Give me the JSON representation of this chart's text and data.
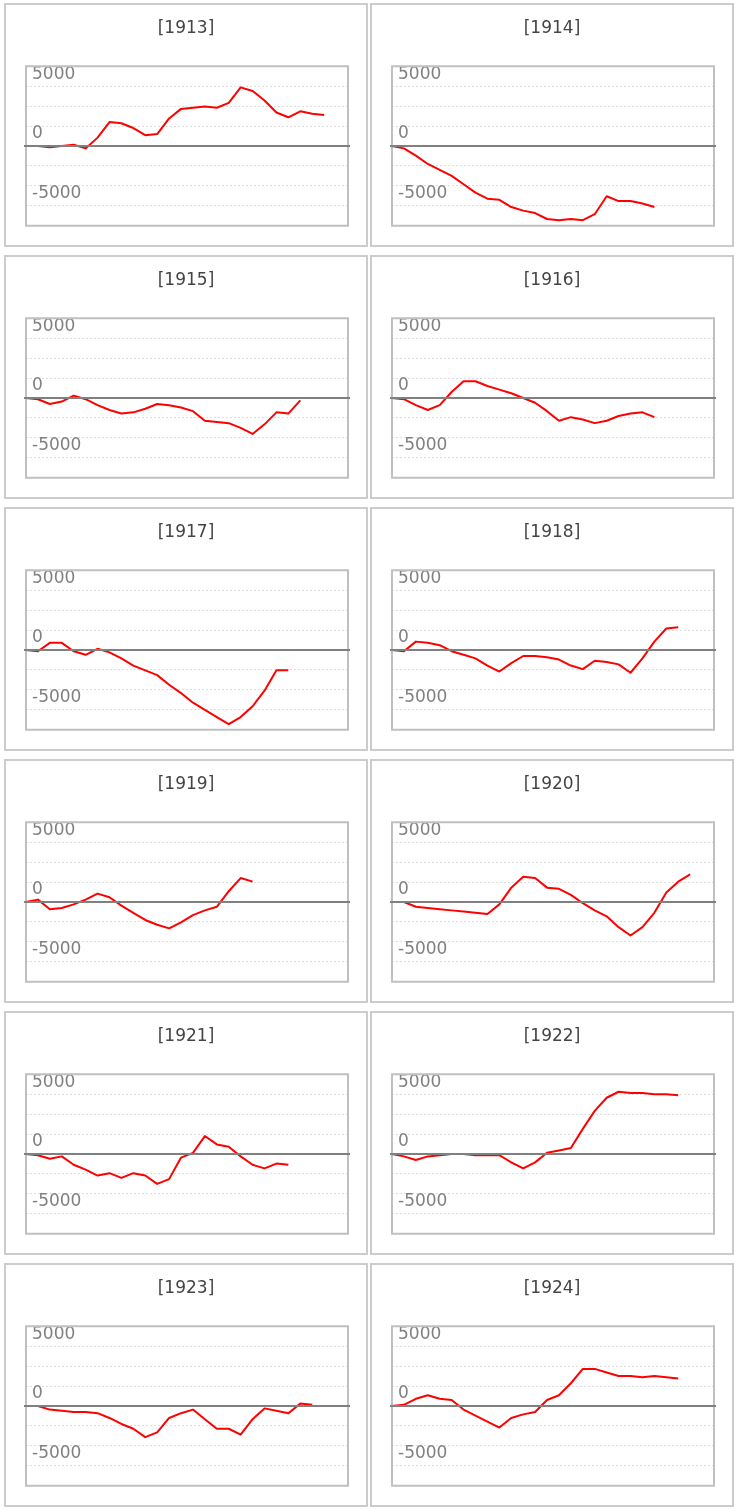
{
  "chart_data": [
    {
      "type": "line",
      "title": "[1913]",
      "categories": [
        null,
        null,
        null,
        null,
        null,
        null,
        null,
        null,
        null,
        null,
        null,
        null,
        null,
        null,
        null,
        null,
        null,
        null,
        null,
        null,
        null,
        null,
        null,
        null,
        null,
        null,
        null,
        null
      ],
      "color": "#ff0000",
      "marker": "none",
      "values": [
        0,
        0,
        -100,
        0,
        100,
        -200,
        700,
        2000,
        1900,
        1500,
        900,
        1000,
        2300,
        3100,
        3200,
        3300,
        3200,
        3600,
        4900,
        4600,
        3800,
        2800,
        2400,
        2900,
        2700,
        2600,
        null,
        null
      ],
      "ylim": [
        -6667,
        6667
      ],
      "yticks": [
        -5000,
        {
          "value": -3333,
          "label": null
        },
        {
          "value": -1667,
          "label": null
        },
        0,
        {
          "value": 1667,
          "label": null
        },
        {
          "value": 3333,
          "label": null
        },
        5000
      ],
      "grid": "y",
      "ref_lines": [
        {
          "axis": "y",
          "value": 0,
          "color": "#808080"
        }
      ]
    },
    {
      "type": "line",
      "title": "[1914]",
      "categories": [
        null,
        null,
        null,
        null,
        null,
        null,
        null,
        null,
        null,
        null,
        null,
        null,
        null,
        null,
        null,
        null,
        null,
        null,
        null,
        null,
        null,
        null,
        null,
        null,
        null,
        null,
        null,
        null
      ],
      "color": "#ff0000",
      "marker": "none",
      "values": [
        0,
        -200,
        -800,
        -1500,
        -2000,
        -2500,
        -3200,
        -3900,
        -4400,
        -4500,
        -5100,
        -5400,
        -5600,
        -6100,
        -6200,
        -6100,
        -6200,
        -5700,
        -4200,
        -4600,
        -4600,
        -4800,
        -5100,
        null,
        null,
        null,
        null,
        null
      ],
      "ylim": [
        -6667,
        6667
      ],
      "yticks": [
        -5000,
        {
          "value": -3333,
          "label": null
        },
        {
          "value": -1667,
          "label": null
        },
        0,
        {
          "value": 1667,
          "label": null
        },
        {
          "value": 3333,
          "label": null
        },
        5000
      ],
      "grid": "y",
      "ref_lines": [
        {
          "axis": "y",
          "value": 0,
          "color": "#808080"
        }
      ]
    },
    {
      "type": "line",
      "title": "[1915]",
      "categories": [
        null,
        null,
        null,
        null,
        null,
        null,
        null,
        null,
        null,
        null,
        null,
        null,
        null,
        null,
        null,
        null,
        null,
        null,
        null,
        null,
        null,
        null,
        null,
        null,
        null,
        null,
        null,
        null
      ],
      "color": "#ff0000",
      "marker": "none",
      "values": [
        0,
        -100,
        -500,
        -300,
        200,
        -100,
        -600,
        -1000,
        -1300,
        -1200,
        -900,
        -500,
        -600,
        -800,
        -1100,
        -1900,
        -2000,
        -2100,
        -2500,
        -3000,
        -2200,
        -1200,
        -1300,
        -200,
        null,
        null,
        null,
        null
      ],
      "ylim": [
        -6667,
        6667
      ],
      "yticks": [
        -5000,
        {
          "value": -3333,
          "label": null
        },
        {
          "value": -1667,
          "label": null
        },
        0,
        {
          "value": 1667,
          "label": null
        },
        {
          "value": 3333,
          "label": null
        },
        5000
      ],
      "grid": "y",
      "ref_lines": [
        {
          "axis": "y",
          "value": 0,
          "color": "#808080"
        }
      ]
    },
    {
      "type": "line",
      "title": "[1916]",
      "categories": [
        null,
        null,
        null,
        null,
        null,
        null,
        null,
        null,
        null,
        null,
        null,
        null,
        null,
        null,
        null,
        null,
        null,
        null,
        null,
        null,
        null,
        null,
        null,
        null,
        null,
        null,
        null,
        null
      ],
      "color": "#ff0000",
      "marker": "none",
      "values": [
        0,
        -100,
        -600,
        -1000,
        -600,
        500,
        1400,
        1400,
        1000,
        700,
        400,
        0,
        -400,
        -1100,
        -1900,
        -1600,
        -1800,
        -2100,
        -1900,
        -1500,
        -1300,
        -1200,
        -1600,
        null,
        null,
        null,
        null,
        null
      ],
      "ylim": [
        -6667,
        6667
      ],
      "yticks": [
        -5000,
        {
          "value": -3333,
          "label": null
        },
        {
          "value": -1667,
          "label": null
        },
        0,
        {
          "value": 1667,
          "label": null
        },
        {
          "value": 3333,
          "label": null
        },
        5000
      ],
      "grid": "y",
      "ref_lines": [
        {
          "axis": "y",
          "value": 0,
          "color": "#808080"
        }
      ]
    },
    {
      "type": "line",
      "title": "[1917]",
      "categories": [
        null,
        null,
        null,
        null,
        null,
        null,
        null,
        null,
        null,
        null,
        null,
        null,
        null,
        null,
        null,
        null,
        null,
        null,
        null,
        null,
        null,
        null,
        null,
        null,
        null,
        null,
        null,
        null
      ],
      "color": "#ff0000",
      "marker": "none",
      "values": [
        0,
        -100,
        600,
        600,
        -100,
        -400,
        100,
        -200,
        -700,
        -1300,
        -1700,
        -2100,
        -2900,
        -3600,
        -4400,
        -5000,
        -5600,
        -6200,
        -5600,
        -4700,
        -3400,
        -1700,
        -1700,
        null,
        null,
        null,
        null,
        null
      ],
      "ylim": [
        -6667,
        6667
      ],
      "yticks": [
        -5000,
        {
          "value": -3333,
          "label": null
        },
        {
          "value": -1667,
          "label": null
        },
        0,
        {
          "value": 1667,
          "label": null
        },
        {
          "value": 3333,
          "label": null
        },
        5000
      ],
      "grid": "y",
      "ref_lines": [
        {
          "axis": "y",
          "value": 0,
          "color": "#808080"
        }
      ]
    },
    {
      "type": "line",
      "title": "[1918]",
      "categories": [
        null,
        null,
        null,
        null,
        null,
        null,
        null,
        null,
        null,
        null,
        null,
        null,
        null,
        null,
        null,
        null,
        null,
        null,
        null,
        null,
        null,
        null,
        null,
        null,
        null,
        null,
        null,
        null
      ],
      "color": "#ff0000",
      "marker": "none",
      "values": [
        0,
        -100,
        700,
        600,
        400,
        -100,
        -400,
        -700,
        -1300,
        -1800,
        -1100,
        -500,
        -500,
        -600,
        -800,
        -1300,
        -1600,
        -900,
        -1000,
        -1200,
        -1900,
        -700,
        700,
        1800,
        1900,
        null,
        null,
        null
      ],
      "ylim": [
        -6667,
        6667
      ],
      "yticks": [
        -5000,
        {
          "value": -3333,
          "label": null
        },
        {
          "value": -1667,
          "label": null
        },
        0,
        {
          "value": 1667,
          "label": null
        },
        {
          "value": 3333,
          "label": null
        },
        5000
      ],
      "grid": "y",
      "ref_lines": [
        {
          "axis": "y",
          "value": 0,
          "color": "#808080"
        }
      ]
    },
    {
      "type": "line",
      "title": "[1919]",
      "categories": [
        null,
        null,
        null,
        null,
        null,
        null,
        null,
        null,
        null,
        null,
        null,
        null,
        null,
        null,
        null,
        null,
        null,
        null,
        null,
        null,
        null,
        null,
        null,
        null,
        null,
        null,
        null,
        null
      ],
      "color": "#ff0000",
      "marker": "none",
      "values": [
        0,
        200,
        -600,
        -500,
        -200,
        200,
        700,
        400,
        -300,
        -900,
        -1500,
        -1900,
        -2200,
        -1700,
        -1100,
        -700,
        -400,
        900,
        2000,
        1700,
        null,
        null,
        null,
        null,
        null,
        null,
        null,
        null
      ],
      "ylim": [
        -6667,
        6667
      ],
      "yticks": [
        -5000,
        {
          "value": -3333,
          "label": null
        },
        {
          "value": -1667,
          "label": null
        },
        0,
        {
          "value": 1667,
          "label": null
        },
        {
          "value": 3333,
          "label": null
        },
        5000
      ],
      "grid": "y",
      "ref_lines": [
        {
          "axis": "y",
          "value": 0,
          "color": "#808080"
        }
      ]
    },
    {
      "type": "line",
      "title": "[1920]",
      "categories": [
        null,
        null,
        null,
        null,
        null,
        null,
        null,
        null,
        null,
        null,
        null,
        null,
        null,
        null,
        null,
        null,
        null,
        null,
        null,
        null,
        null,
        null,
        null,
        null,
        null,
        null,
        null,
        null
      ],
      "color": "#ff0000",
      "marker": "none",
      "values": [
        0,
        0,
        -400,
        -500,
        -600,
        -700,
        -800,
        -900,
        -1000,
        -200,
        1200,
        2100,
        2000,
        1200,
        1100,
        600,
        -100,
        -700,
        -1200,
        -2100,
        -2800,
        -2100,
        -900,
        800,
        1700,
        2300,
        null,
        null
      ],
      "ylim": [
        -6667,
        6667
      ],
      "yticks": [
        -5000,
        {
          "value": -3333,
          "label": null
        },
        {
          "value": -1667,
          "label": null
        },
        0,
        {
          "value": 1667,
          "label": null
        },
        {
          "value": 3333,
          "label": null
        },
        5000
      ],
      "grid": "y",
      "ref_lines": [
        {
          "axis": "y",
          "value": 0,
          "color": "#808080"
        }
      ]
    },
    {
      "type": "line",
      "title": "[1921]",
      "categories": [
        null,
        null,
        null,
        null,
        null,
        null,
        null,
        null,
        null,
        null,
        null,
        null,
        null,
        null,
        null,
        null,
        null,
        null,
        null,
        null,
        null,
        null,
        null,
        null,
        null,
        null,
        null,
        null
      ],
      "color": "#ff0000",
      "marker": "none",
      "values": [
        0,
        -100,
        -400,
        -200,
        -900,
        -1300,
        -1800,
        -1600,
        -2000,
        -1600,
        -1800,
        -2500,
        -2100,
        -300,
        100,
        1500,
        800,
        600,
        -200,
        -900,
        -1200,
        -800,
        -900,
        null,
        null,
        null,
        null,
        null
      ],
      "ylim": [
        -6667,
        6667
      ],
      "yticks": [
        -5000,
        {
          "value": -3333,
          "label": null
        },
        {
          "value": -1667,
          "label": null
        },
        0,
        {
          "value": 1667,
          "label": null
        },
        {
          "value": 3333,
          "label": null
        },
        5000
      ],
      "grid": "y",
      "ref_lines": [
        {
          "axis": "y",
          "value": 0,
          "color": "#808080"
        }
      ]
    },
    {
      "type": "line",
      "title": "[1922]",
      "categories": [
        null,
        null,
        null,
        null,
        null,
        null,
        null,
        null,
        null,
        null,
        null,
        null,
        null,
        null,
        null,
        null,
        null,
        null,
        null,
        null,
        null,
        null,
        null,
        null,
        null,
        null,
        null,
        null
      ],
      "color": "#ff0000",
      "marker": "none",
      "values": [
        0,
        -200,
        -500,
        -200,
        -100,
        0,
        0,
        -100,
        -100,
        -100,
        -700,
        -1200,
        -700,
        100,
        300,
        500,
        2100,
        3600,
        4700,
        5200,
        5100,
        5100,
        5000,
        5000,
        4900,
        null,
        null,
        null
      ],
      "ylim": [
        -6667,
        6667
      ],
      "yticks": [
        -5000,
        {
          "value": -3333,
          "label": null
        },
        {
          "value": -1667,
          "label": null
        },
        0,
        {
          "value": 1667,
          "label": null
        },
        {
          "value": 3333,
          "label": null
        },
        5000
      ],
      "grid": "y",
      "ref_lines": [
        {
          "axis": "y",
          "value": 0,
          "color": "#808080"
        }
      ]
    },
    {
      "type": "line",
      "title": "[1923]",
      "categories": [
        null,
        null,
        null,
        null,
        null,
        null,
        null,
        null,
        null,
        null,
        null,
        null,
        null,
        null,
        null,
        null,
        null,
        null,
        null,
        null,
        null,
        null,
        null,
        null,
        null,
        null,
        null,
        null
      ],
      "color": "#ff0000",
      "marker": "none",
      "values": [
        0,
        0,
        -300,
        -400,
        -500,
        -500,
        -600,
        -1000,
        -1500,
        -1900,
        -2600,
        -2200,
        -1000,
        -600,
        -300,
        -1100,
        -1900,
        -1900,
        -2400,
        -1100,
        -200,
        -400,
        -600,
        200,
        100,
        null,
        null,
        null
      ],
      "ylim": [
        -6667,
        6667
      ],
      "yticks": [
        -5000,
        {
          "value": -3333,
          "label": null
        },
        {
          "value": -1667,
          "label": null
        },
        0,
        {
          "value": 1667,
          "label": null
        },
        {
          "value": 3333,
          "label": null
        },
        5000
      ],
      "grid": "y",
      "ref_lines": [
        {
          "axis": "y",
          "value": 0,
          "color": "#808080"
        }
      ]
    },
    {
      "type": "line",
      "title": "[1924]",
      "categories": [
        null,
        null,
        null,
        null,
        null,
        null,
        null,
        null,
        null,
        null,
        null,
        null,
        null,
        null,
        null,
        null,
        null,
        null,
        null,
        null,
        null,
        null,
        null,
        null,
        null,
        null,
        null,
        null
      ],
      "color": "#ff0000",
      "marker": "none",
      "values": [
        0,
        100,
        600,
        900,
        600,
        500,
        -300,
        -800,
        -1300,
        -1800,
        -1000,
        -700,
        -500,
        500,
        900,
        1900,
        3100,
        3100,
        2800,
        2500,
        2500,
        2400,
        2500,
        2400,
        2300,
        null,
        null,
        null
      ],
      "ylim": [
        -6667,
        6667
      ],
      "yticks": [
        -5000,
        {
          "value": -3333,
          "label": null
        },
        {
          "value": -1667,
          "label": null
        },
        0,
        {
          "value": 1667,
          "label": null
        },
        {
          "value": 3333,
          "label": null
        },
        5000
      ],
      "grid": "y",
      "ref_lines": [
        {
          "axis": "y",
          "value": 0,
          "color": "#808080"
        }
      ]
    }
  ]
}
